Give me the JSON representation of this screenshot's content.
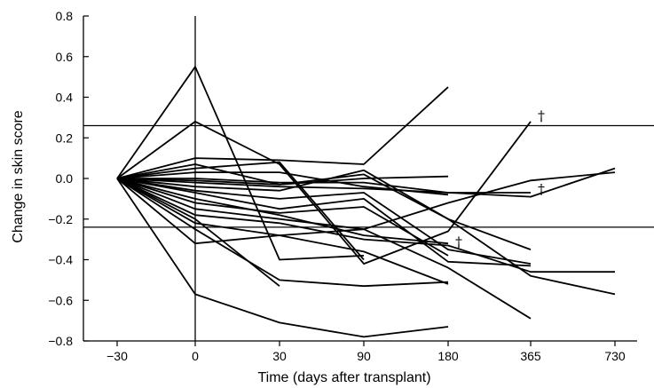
{
  "chart_data": {
    "type": "line",
    "title": "",
    "xlabel": "Time (days after transplant)",
    "ylabel": "Change in skin score",
    "x_categories": [
      "−30",
      "0",
      "30",
      "90",
      "180",
      "365",
      "730"
    ],
    "ylim": [
      -0.8,
      0.8
    ],
    "yticks": [
      -0.8,
      -0.6,
      -0.4,
      -0.2,
      0.0,
      0.2,
      0.4,
      0.6,
      0.8
    ],
    "ytick_labels": [
      "−0.8",
      "−0.6",
      "−0.4",
      "−0.2",
      "0.0",
      "0.2",
      "0.4",
      "0.6",
      "0.8"
    ],
    "reference_lines": [
      0.26,
      -0.24
    ],
    "vertical_line_at": "0",
    "grid": false,
    "line_color": "#000000",
    "series": [
      {
        "values": [
          0,
          0.55,
          -0.4,
          -0.38
        ]
      },
      {
        "values": [
          0,
          0.28,
          0.07,
          -0.42,
          -0.26,
          0.28
        ]
      },
      {
        "values": [
          0,
          0.1,
          0.09,
          0.07,
          0.45
        ]
      },
      {
        "values": [
          0,
          0.07,
          -0.03,
          0.0,
          0.01
        ]
      },
      {
        "values": [
          0,
          0.05,
          0.08,
          -0.4
        ]
      },
      {
        "values": [
          0,
          0.03,
          0.03,
          -0.04,
          -0.08
        ]
      },
      {
        "values": [
          0,
          0.0,
          -0.02,
          -0.02,
          -0.07,
          -0.09,
          0.05
        ]
      },
      {
        "values": [
          0,
          -0.02,
          -0.04,
          -0.05,
          -0.07,
          -0.07
        ]
      },
      {
        "values": [
          0,
          -0.01,
          -0.03,
          0.02,
          -0.2,
          -0.48,
          -0.57
        ]
      },
      {
        "values": [
          0,
          -0.04,
          -0.06,
          0.04,
          -0.2,
          -0.35
        ]
      },
      {
        "values": [
          0,
          -0.06,
          -0.1,
          -0.07,
          -0.35,
          -0.42
        ]
      },
      {
        "values": [
          0,
          -0.07,
          -0.15,
          -0.1,
          -0.41,
          -0.43
        ]
      },
      {
        "values": [
          0,
          -0.1,
          -0.18,
          -0.28,
          -0.32
        ]
      },
      {
        "values": [
          0,
          -0.12,
          -0.17,
          -0.14,
          -0.38
        ]
      },
      {
        "values": [
          0,
          -0.15,
          -0.2,
          -0.25,
          -0.44,
          -0.69
        ]
      },
      {
        "values": [
          0,
          -0.18,
          -0.22,
          -0.3,
          -0.33,
          -0.46,
          -0.46
        ]
      },
      {
        "values": [
          0,
          -0.2,
          -0.53
        ]
      },
      {
        "values": [
          0,
          -0.22,
          -0.28,
          -0.36,
          -0.52
        ]
      },
      {
        "values": [
          0,
          -0.25,
          -0.5,
          -0.53,
          -0.51
        ]
      },
      {
        "values": [
          0,
          -0.32,
          -0.28,
          -0.25,
          -0.12,
          -0.01,
          0.03
        ]
      },
      {
        "values": [
          0,
          -0.57,
          -0.71,
          -0.78,
          -0.73
        ]
      }
    ],
    "annotations": [
      {
        "text": "†",
        "x": "365",
        "y": 0.31
      },
      {
        "text": "†",
        "x": "365",
        "y": -0.05
      },
      {
        "text": "†",
        "x": "180",
        "y": -0.31
      }
    ]
  }
}
